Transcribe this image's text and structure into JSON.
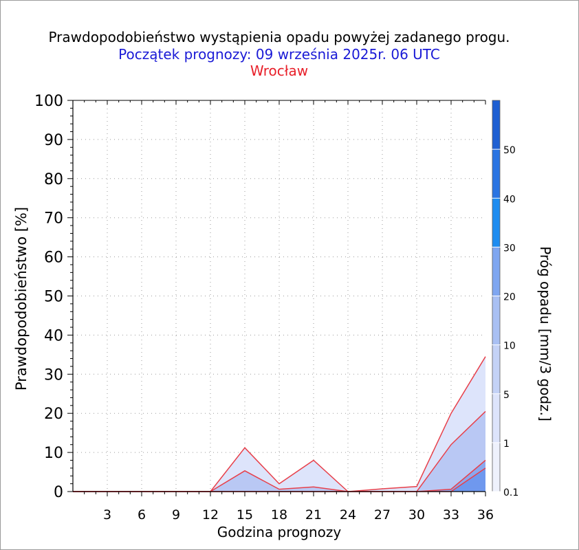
{
  "header": {
    "title": "Prawdopodobieństwo wystąpienia opadu powyżej zadanego progu.",
    "subtitle": "Początek prognozy: 09 września 2025r. 06 UTC",
    "station": "Wrocław"
  },
  "colors": {
    "title": "#000000",
    "subtitle": "#1a1ad6",
    "station": "#e8202a",
    "series_line": "#e8404a"
  },
  "chart_data": {
    "type": "area",
    "title": "Prawdopodobieństwo wystąpienia opadu powyżej zadanego progu.",
    "xlabel": "Godzina prognozy",
    "ylabel": "Prawdopodobieństwo [%]",
    "xlim": [
      0,
      36
    ],
    "ylim": [
      0,
      100
    ],
    "x": [
      0,
      3,
      6,
      9,
      12,
      15,
      18,
      21,
      24,
      27,
      30,
      33,
      36
    ],
    "x_ticks": [
      3,
      6,
      9,
      12,
      15,
      18,
      21,
      24,
      27,
      30,
      33,
      36
    ],
    "y_ticks": [
      0,
      10,
      20,
      30,
      40,
      50,
      60,
      70,
      80,
      90,
      100
    ],
    "grid": true,
    "series": [
      {
        "name": "0.1",
        "color": "#dde4fb",
        "values": [
          0,
          0,
          0,
          0,
          0,
          11.2,
          2,
          8,
          0,
          0.7,
          1.3,
          20,
          34.5
        ]
      },
      {
        "name": "1",
        "color": "#b9c8f4",
        "values": [
          0,
          0,
          0,
          0,
          0,
          5.3,
          0.6,
          1.2,
          0,
          0,
          0,
          12,
          20.5
        ]
      },
      {
        "name": "5",
        "color": "#8aa8ee",
        "values": [
          0,
          0,
          0,
          0,
          0,
          0,
          0,
          0,
          0,
          0,
          0,
          0.6,
          8
        ]
      },
      {
        "name": "10",
        "color": "#6f98ee",
        "values": [
          0,
          0,
          0,
          0,
          0,
          0,
          0,
          0,
          0,
          0,
          0,
          0,
          6
        ]
      }
    ],
    "colorbar": {
      "label": "Próg opadu [mm/3 godz.]",
      "levels": [
        "0.1",
        "1",
        "5",
        "10",
        "20",
        "30",
        "40",
        "50"
      ],
      "colors": [
        "#eef1fc",
        "#dde4fb",
        "#c4d2f6",
        "#a9c0f3",
        "#7fa6f0",
        "#1e8cf0",
        "#2a74e2",
        "#1e5fd2",
        "#164cbc"
      ]
    }
  }
}
